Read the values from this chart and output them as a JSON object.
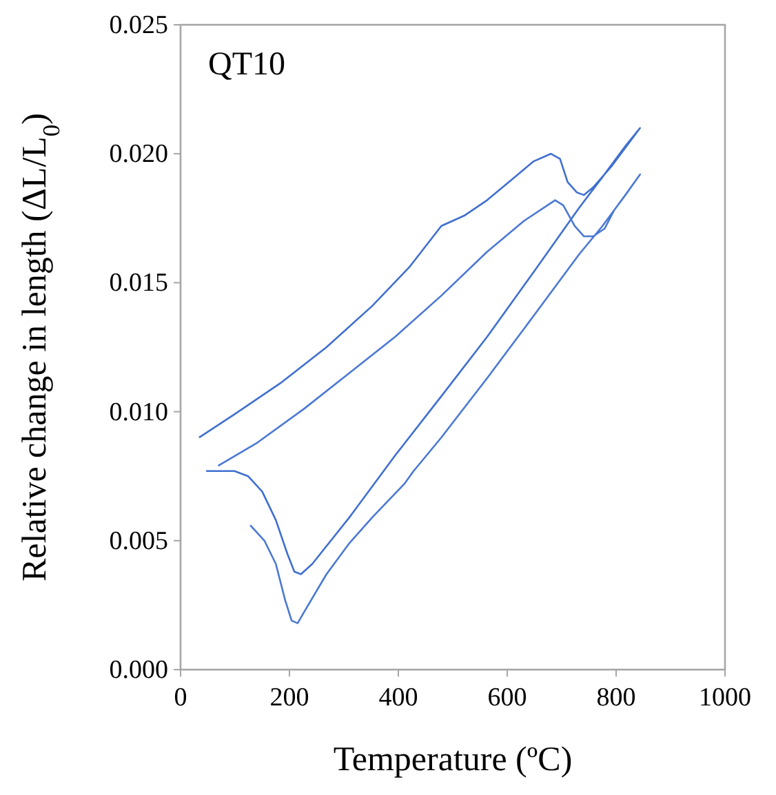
{
  "chart_data": {
    "type": "line",
    "xlabel": "Temperature (ºC)",
    "ylabel": "Relative change in length (ΔL/L$_{0}$)",
    "annotations": [
      "QT10"
    ],
    "xlim": [
      0,
      1000
    ],
    "xticks": [
      0,
      200,
      400,
      600,
      800,
      1000
    ],
    "ylim": [
      0,
      0.025
    ],
    "yticks": [
      {
        "value": 0,
        "label": "0.000"
      },
      {
        "value": 0.005,
        "label": "0.005"
      },
      {
        "value": 0.01,
        "label": "0.010"
      },
      {
        "value": 0.015,
        "label": "0.015"
      },
      {
        "value": 0.02,
        "label": "0.020"
      },
      {
        "value": 0.025,
        "label": "0.025"
      }
    ],
    "grid": false,
    "marker": "none",
    "line_style": "solid",
    "series": [
      {
        "color": "#3f6fd0",
        "x": [
          34,
          99,
          183,
          268,
          352,
          420,
          479,
          521,
          563,
          614,
          648,
          680,
          697,
          711,
          728,
          741,
          758,
          791,
          844,
          817,
          775,
          732,
          648,
          563,
          479,
          394,
          310,
          242,
          221,
          209,
          196,
          175,
          150,
          124,
          99,
          74,
          47
        ],
        "values": [
          0.009,
          0.0099,
          0.0111,
          0.0125,
          0.0141,
          0.0156,
          0.0172,
          0.0176,
          0.0182,
          0.0191,
          0.0197,
          0.02,
          0.0198,
          0.0189,
          0.0185,
          0.0184,
          0.0187,
          0.0195,
          0.021,
          0.0203,
          0.0191,
          0.0179,
          0.0154,
          0.0129,
          0.0106,
          0.0083,
          0.0059,
          0.0041,
          0.0037,
          0.0038,
          0.0045,
          0.0058,
          0.0069,
          0.0075,
          0.0077,
          0.0077,
          0.0077
        ]
      },
      {
        "color": "#4a78d4",
        "x": [
          69,
          141,
          226,
          310,
          394,
          479,
          563,
          631,
          688,
          703,
          724,
          741,
          758,
          779,
          796,
          817,
          844,
          817,
          775,
          732,
          648,
          563,
          479,
          432,
          428,
          411,
          352,
          310,
          268,
          226,
          215,
          204,
          192,
          175,
          154,
          128
        ],
        "values": [
          0.0079,
          0.0088,
          0.0101,
          0.0115,
          0.0129,
          0.0145,
          0.0162,
          0.0174,
          0.0182,
          0.018,
          0.0172,
          0.0168,
          0.0168,
          0.0171,
          0.0178,
          0.0184,
          0.0192,
          0.0184,
          0.0172,
          0.0161,
          0.0137,
          0.0113,
          0.009,
          0.0078,
          0.0077,
          0.0072,
          0.0059,
          0.0049,
          0.0037,
          0.0022,
          0.0018,
          0.0019,
          0.0027,
          0.0041,
          0.005,
          0.0056
        ]
      }
    ]
  }
}
